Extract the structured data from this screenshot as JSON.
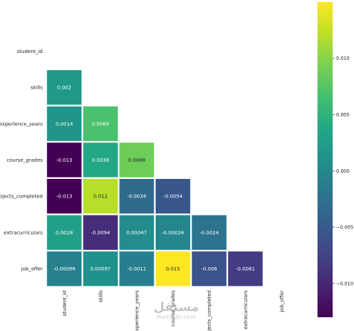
{
  "chart_data": {
    "type": "heatmap",
    "title": "",
    "xlabel": "",
    "ylabel": "",
    "variables": [
      "student_id",
      "skills",
      "experience_years",
      "course_grades",
      "projects_completed",
      "extracurriculars",
      "job_offer"
    ],
    "mask": "upper-triangle-including-diagonal",
    "cells": [
      {
        "row": 1,
        "col": 0,
        "value": 0.002,
        "label": "0.002"
      },
      {
        "row": 2,
        "col": 0,
        "value": 0.0014,
        "label": "0.0014"
      },
      {
        "row": 2,
        "col": 1,
        "value": 0.0069,
        "label": "0.0069"
      },
      {
        "row": 3,
        "col": 0,
        "value": -0.013,
        "label": "-0.013"
      },
      {
        "row": 3,
        "col": 1,
        "value": 0.0038,
        "label": "0.0038"
      },
      {
        "row": 3,
        "col": 2,
        "value": 0.0088,
        "label": "0.0088"
      },
      {
        "row": 4,
        "col": 0,
        "value": -0.013,
        "label": "-0.013"
      },
      {
        "row": 4,
        "col": 1,
        "value": 0.012,
        "label": "0.012"
      },
      {
        "row": 4,
        "col": 2,
        "value": -0.0034,
        "label": "-0.0034"
      },
      {
        "row": 4,
        "col": 3,
        "value": -0.0054,
        "label": "-0.0054"
      },
      {
        "row": 5,
        "col": 0,
        "value": 0.0028,
        "label": "0.0028"
      },
      {
        "row": 5,
        "col": 1,
        "value": -0.0094,
        "label": "-0.0094"
      },
      {
        "row": 5,
        "col": 2,
        "value": 0.00047,
        "label": "0.00047"
      },
      {
        "row": 5,
        "col": 3,
        "value": -0.00024,
        "label": "-0.00024"
      },
      {
        "row": 5,
        "col": 4,
        "value": -0.0024,
        "label": "-0.0024"
      },
      {
        "row": 6,
        "col": 0,
        "value": -0.00096,
        "label": "-0.00096"
      },
      {
        "row": 6,
        "col": 1,
        "value": 0.00097,
        "label": "0.00097"
      },
      {
        "row": 6,
        "col": 2,
        "value": -0.0011,
        "label": "-0.0011"
      },
      {
        "row": 6,
        "col": 3,
        "value": 0.015,
        "label": "0.015"
      },
      {
        "row": 6,
        "col": 4,
        "value": -0.006,
        "label": "-0.006"
      },
      {
        "row": 6,
        "col": 5,
        "value": -0.0081,
        "label": "-0.0081"
      }
    ],
    "colormap": "viridis",
    "color_range": [
      -0.013,
      0.015
    ],
    "colorbar_ticks": [
      {
        "value": 0.01,
        "label": "0.010"
      },
      {
        "value": 0.005,
        "label": "0.005"
      },
      {
        "value": 0.0,
        "label": "0.000"
      },
      {
        "value": -0.005,
        "label": "−0.005"
      },
      {
        "value": -0.01,
        "label": "−0.010"
      }
    ],
    "grid": false,
    "legend": "colorbar-right"
  },
  "watermark": {
    "arabic": "مستقل",
    "latin": "mostaql.com"
  }
}
